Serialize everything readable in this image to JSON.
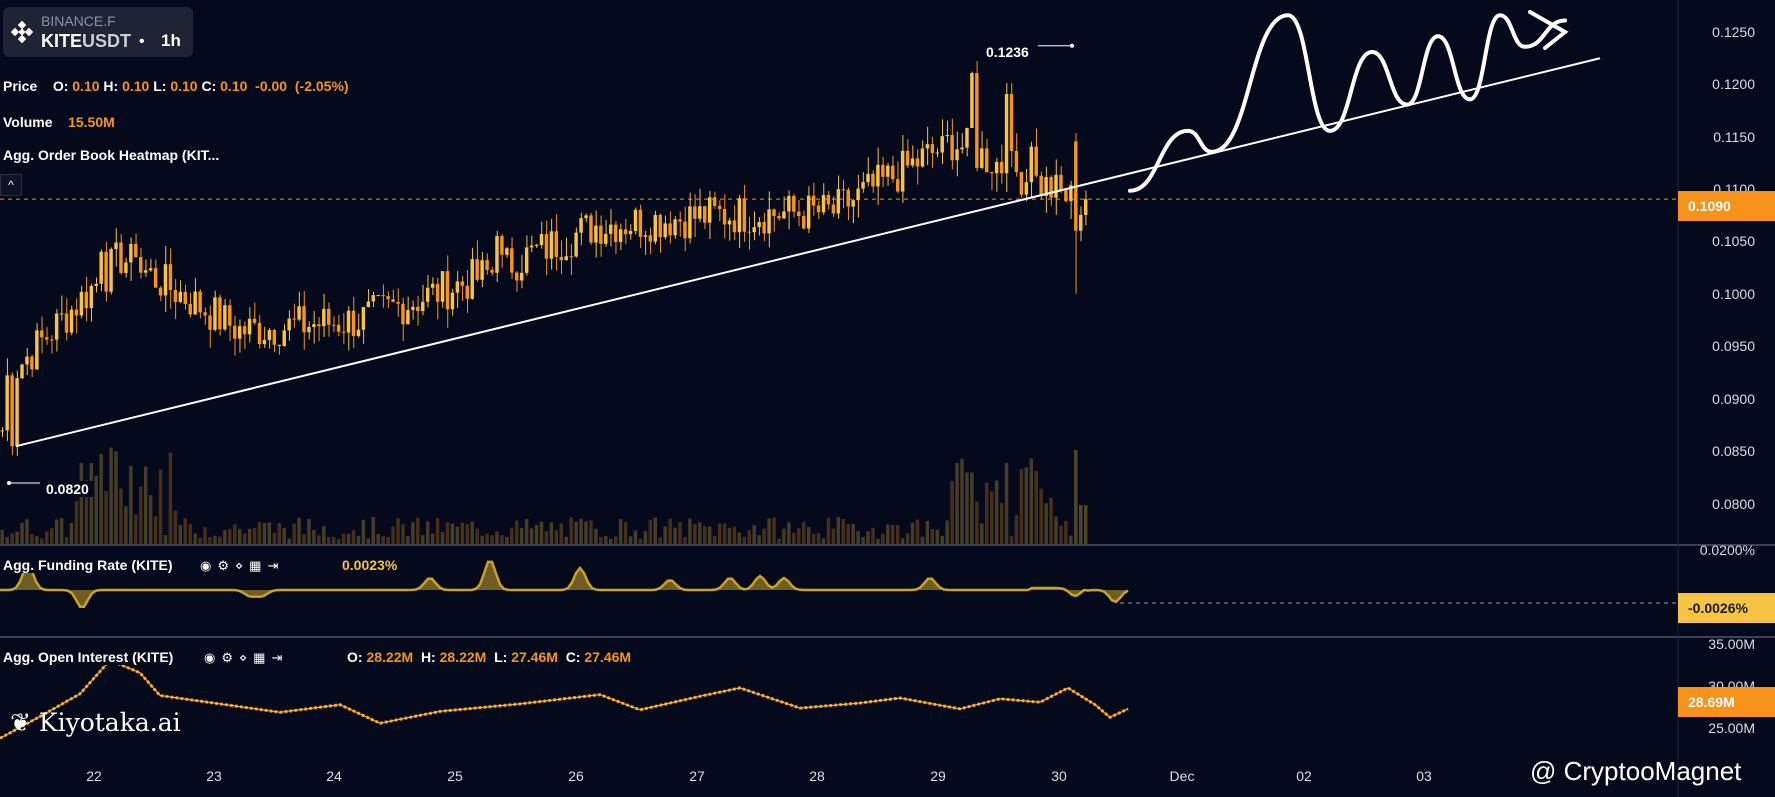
{
  "header": {
    "exchange": "BINANCE.F",
    "symbol_base": "KITE",
    "symbol_quote": "USDT",
    "separator": "•",
    "timeframe": "1h"
  },
  "legend": {
    "price": {
      "label": "Price",
      "o_key": "O:",
      "o": "0.10",
      "h_key": "H:",
      "h": "0.10",
      "l_key": "L:",
      "l": "0.10",
      "c_key": "C:",
      "c": "0.10",
      "change": "-0.00",
      "change_pct": "(-2.05%)"
    },
    "volume": {
      "label": "Volume",
      "value": "15.50M"
    },
    "heatmap": {
      "label": "Agg. Order Book Heatmap (KIT..."
    },
    "funding": {
      "label": "Agg. Funding Rate (KITE)",
      "value": "0.0023%"
    },
    "oi": {
      "label": "Agg. Open Interest (KITE)",
      "o_key": "O:",
      "o": "28.22M",
      "h_key": "H:",
      "h": "28.22M",
      "l_key": "L:",
      "l": "27.46M",
      "c_key": "C:",
      "c": "27.46M"
    },
    "collapse": "^"
  },
  "annotations": {
    "high": "0.1236",
    "low": "0.0820"
  },
  "price_axis": {
    "ticks": [
      "0.1250",
      "0.1200",
      "0.1150",
      "0.1100",
      "0.1050",
      "0.1000",
      "0.0950",
      "0.0900",
      "0.0850",
      "0.0800"
    ],
    "current": "0.1090"
  },
  "funding_axis": {
    "top": "0.0200%",
    "current": "-0.0026%"
  },
  "oi_axis": {
    "ticks": [
      "35.00M",
      "30.00M",
      "25.00M"
    ],
    "current": "28.69M"
  },
  "time_axis": [
    "22",
    "23",
    "24",
    "25",
    "26",
    "27",
    "28",
    "29",
    "30",
    "Dec",
    "02",
    "03"
  ],
  "watermark": "Kiyotaka.ai",
  "credit": "@ CryptooMagnet",
  "colors": {
    "background": "#040a1b",
    "up": "#f6c343",
    "down": "#f7931a",
    "trendline": "#ffffff",
    "current_price": "#f7931a",
    "funding": "#c9a227"
  },
  "chart_data": {
    "type": "candlestick",
    "title": "",
    "xlabel": "",
    "ylabel": "",
    "x": [
      "21",
      "22",
      "23",
      "24",
      "25",
      "26",
      "27",
      "28",
      "29",
      "30"
    ],
    "ylim": [
      0.077,
      0.127
    ],
    "close": [
      0.0915,
      0.1035,
      0.0965,
      0.0975,
      0.1015,
      0.1065,
      0.1075,
      0.1078,
      0.1145,
      0.109
    ],
    "period_high": 0.1236,
    "period_low": 0.082,
    "last_price": 0.109,
    "trendline": [
      {
        "x": "21",
        "y": 0.0855
      },
      {
        "x": "30",
        "y": 0.1098
      }
    ],
    "projection_path": [
      0.1098,
      0.1155,
      0.1135,
      0.1265,
      0.1155,
      0.123,
      0.118,
      0.1245,
      0.1185,
      0.1265,
      0.1235,
      0.126
    ],
    "indicators": {
      "funding_rate_range": [
        "-0.0026%",
        "0.0200%"
      ],
      "funding_rate_last": "0.0023%",
      "open_interest_range": [
        "25.00M",
        "35.00M"
      ],
      "open_interest_last": "28.69M"
    }
  }
}
